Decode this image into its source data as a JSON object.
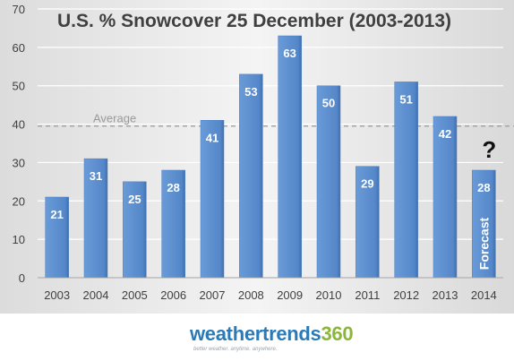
{
  "chart_data": {
    "type": "bar",
    "title": "U.S. % Snowcover 25 December (2003-2013)",
    "categories": [
      "2003",
      "2004",
      "2005",
      "2006",
      "2007",
      "2008",
      "2009",
      "2010",
      "2011",
      "2012",
      "2013",
      "2014"
    ],
    "values": [
      21,
      31,
      25,
      28,
      41,
      53,
      63,
      50,
      29,
      51,
      42,
      28
    ],
    "data_labels": [
      "21",
      "31",
      "25",
      "28",
      "41",
      "53",
      "63",
      "50",
      "29",
      "51",
      "42",
      "28"
    ],
    "ylim": [
      0,
      70
    ],
    "yticks": [
      "0",
      "10",
      "20",
      "30",
      "40",
      "50",
      "60",
      "70"
    ],
    "grid": true,
    "reference_line": {
      "label": "Average",
      "value": 39.5
    },
    "forecast_bar": {
      "category": "2014",
      "label": "Forecast",
      "marker": "?"
    },
    "colors": {
      "bar": "#5b8fd0",
      "bar_dark": "#3d6fb0",
      "grid": "#ffffff",
      "average_line": "#a6a6a6",
      "title": "#404040",
      "tick": "#404040"
    }
  },
  "logo": {
    "part1": "weathertrends",
    "part2": "360",
    "tagline": "better weather. anytime. anywhere.",
    "colors": {
      "part1": "#2a7ab8",
      "part2": "#8bb63a"
    }
  }
}
